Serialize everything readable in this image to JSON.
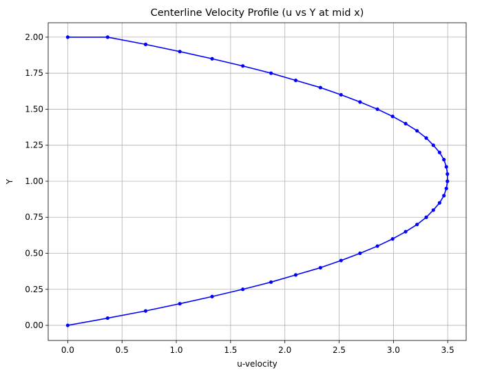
{
  "chart_data": {
    "type": "line",
    "title": "Centerline Velocity Profile (u vs Y at mid x)",
    "xlabel": "u-velocity",
    "ylabel": "Y",
    "xlim": [
      -0.18,
      3.67
    ],
    "ylim": [
      -0.105,
      2.1
    ],
    "xticks": [
      0.0,
      0.5,
      1.0,
      1.5,
      2.0,
      2.5,
      3.0,
      3.5
    ],
    "xtick_labels": [
      "0.0",
      "0.5",
      "1.0",
      "1.5",
      "2.0",
      "2.5",
      "3.0",
      "3.5"
    ],
    "yticks": [
      0.0,
      0.25,
      0.5,
      0.75,
      1.0,
      1.25,
      1.5,
      1.75,
      2.0
    ],
    "ytick_labels": [
      "0.00",
      "0.25",
      "0.50",
      "0.75",
      "1.00",
      "1.25",
      "1.50",
      "1.75",
      "2.00"
    ],
    "grid": true,
    "color": "#0000ff",
    "marker": "circle",
    "series": [
      {
        "x": [
          0.0,
          0.3675,
          0.7175,
          1.0325,
          1.33,
          1.6125,
          1.8725,
          2.1,
          2.3275,
          2.5175,
          2.6925,
          2.8525,
          2.9925,
          3.1125,
          3.2175,
          3.3025,
          3.3675,
          3.425,
          3.465,
          3.4875,
          3.4975,
          3.4975,
          3.4875,
          3.465,
          3.425,
          3.3675,
          3.3025,
          3.2175,
          3.1125,
          2.9925,
          2.8525,
          2.6925,
          2.5175,
          2.3275,
          2.1,
          1.8725,
          1.6125,
          1.33,
          1.0325,
          0.7175,
          0.3675,
          0.0
        ],
        "y": [
          0.0,
          0.05,
          0.1,
          0.15,
          0.2,
          0.25,
          0.3,
          0.35,
          0.4,
          0.45,
          0.5,
          0.55,
          0.6,
          0.65,
          0.7,
          0.75,
          0.8,
          0.85,
          0.9,
          0.95,
          1.0,
          1.05,
          1.1,
          1.15,
          1.2,
          1.25,
          1.3,
          1.35,
          1.4,
          1.45,
          1.5,
          1.55,
          1.6,
          1.65,
          1.7,
          1.75,
          1.8,
          1.85,
          1.9,
          1.95,
          2.0,
          2.0
        ]
      }
    ]
  }
}
